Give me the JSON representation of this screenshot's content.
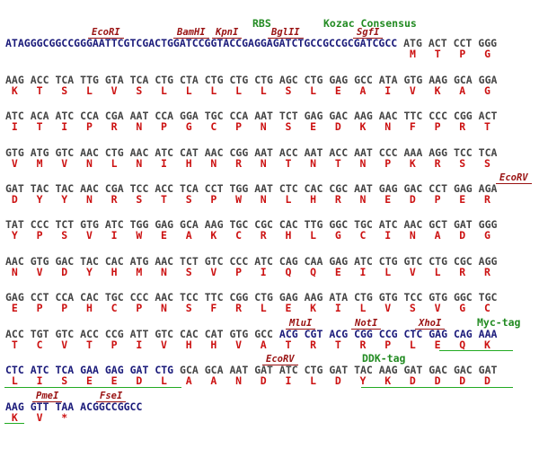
{
  "rows": [
    {
      "labels": [
        "RBS",
        "Kozac Consensus",
        "EcoRI",
        "BamHI",
        "KpnI",
        "BglII",
        "SgfI"
      ],
      "segments": [
        {
          "kind": "vector",
          "text": "ATAGGGCGGCCGGGAATTCGTCGACTGGATCCGGTACCGAGGAGATCTGCCGCCGCGATCGCC"
        },
        {
          "kind": "orf",
          "codons": [
            "ATG",
            "ACT",
            "CCT",
            "GGG"
          ]
        }
      ],
      "protein": [
        "M",
        "T",
        "P",
        "G"
      ]
    },
    {
      "labels": [],
      "segments": [
        {
          "kind": "orf",
          "codons": [
            "AAG",
            "ACC",
            "TCA",
            "TTG",
            "GTA",
            "TCA",
            "CTG",
            "CTA",
            "CTG",
            "CTG",
            "CTG",
            "AGC",
            "CTG",
            "GAG",
            "GCC",
            "ATA",
            "GTG",
            "AAG",
            "GCA",
            "GGA"
          ]
        }
      ],
      "protein": [
        "K",
        "T",
        "S",
        "L",
        "V",
        "S",
        "L",
        "L",
        "L",
        "L",
        "L",
        "S",
        "L",
        "E",
        "A",
        "I",
        "V",
        "K",
        "A",
        "G"
      ]
    },
    {
      "labels": [],
      "segments": [
        {
          "kind": "orf",
          "codons": [
            "ATC",
            "ACA",
            "ATC",
            "CCA",
            "CGA",
            "AAT",
            "CCA",
            "GGA",
            "TGC",
            "CCA",
            "AAT",
            "TCT",
            "GAG",
            "GAC",
            "AAG",
            "AAC",
            "TTC",
            "CCC",
            "CGG",
            "ACT"
          ]
        }
      ],
      "protein": [
        "I",
        "T",
        "I",
        "P",
        "R",
        "N",
        "P",
        "G",
        "C",
        "P",
        "N",
        "S",
        "E",
        "D",
        "K",
        "N",
        "F",
        "P",
        "R",
        "T"
      ]
    },
    {
      "labels": [],
      "segments": [
        {
          "kind": "orf",
          "codons": [
            "GTG",
            "ATG",
            "GTC",
            "AAC",
            "CTG",
            "AAC",
            "ATC",
            "CAT",
            "AAC",
            "CGG",
            "AAT",
            "ACC",
            "AAT",
            "ACC",
            "AAT",
            "CCC",
            "AAA",
            "AGG",
            "TCC",
            "TCA"
          ]
        }
      ],
      "protein": [
        "V",
        "M",
        "V",
        "N",
        "L",
        "N",
        "I",
        "H",
        "N",
        "R",
        "N",
        "T",
        "N",
        "T",
        "N",
        "P",
        "K",
        "R",
        "S",
        "S"
      ]
    },
    {
      "labels": [
        "EcoRV"
      ],
      "segments": [
        {
          "kind": "orf",
          "codons": [
            "GAT",
            "TAC",
            "TAC",
            "AAC",
            "CGA",
            "TCC",
            "ACC",
            "TCA",
            "CCT",
            "TGG",
            "AAT",
            "CTC",
            "CAC",
            "CGC",
            "AAT",
            "GAG",
            "GAC",
            "CCT",
            "GAG",
            "AGA"
          ]
        }
      ],
      "protein": [
        "D",
        "Y",
        "Y",
        "N",
        "R",
        "S",
        "T",
        "S",
        "P",
        "W",
        "N",
        "L",
        "H",
        "R",
        "N",
        "E",
        "D",
        "P",
        "E",
        "R"
      ]
    },
    {
      "labels": [],
      "segments": [
        {
          "kind": "orf",
          "codons": [
            "TAT",
            "CCC",
            "TCT",
            "GTG",
            "ATC",
            "TGG",
            "GAG",
            "GCA",
            "AAG",
            "TGC",
            "CGC",
            "CAC",
            "TTG",
            "GGC",
            "TGC",
            "ATC",
            "AAC",
            "GCT",
            "GAT",
            "GGG"
          ]
        }
      ],
      "protein": [
        "Y",
        "P",
        "S",
        "V",
        "I",
        "W",
        "E",
        "A",
        "K",
        "C",
        "R",
        "H",
        "L",
        "G",
        "C",
        "I",
        "N",
        "A",
        "D",
        "G"
      ]
    },
    {
      "labels": [],
      "segments": [
        {
          "kind": "orf",
          "codons": [
            "AAC",
            "GTG",
            "GAC",
            "TAC",
            "CAC",
            "ATG",
            "AAC",
            "TCT",
            "GTC",
            "CCC",
            "ATC",
            "CAG",
            "CAA",
            "GAG",
            "ATC",
            "CTG",
            "GTC",
            "CTG",
            "CGC",
            "AGG"
          ]
        }
      ],
      "protein": [
        "N",
        "V",
        "D",
        "Y",
        "H",
        "M",
        "N",
        "S",
        "V",
        "P",
        "I",
        "Q",
        "Q",
        "E",
        "I",
        "L",
        "V",
        "L",
        "R",
        "R"
      ]
    },
    {
      "labels": [],
      "segments": [
        {
          "kind": "orf",
          "codons": [
            "GAG",
            "CCT",
            "CCA",
            "CAC",
            "TGC",
            "CCC",
            "AAC",
            "TCC",
            "TTC",
            "CGG",
            "CTG",
            "GAG",
            "AAG",
            "ATA",
            "CTG",
            "GTG",
            "TCC",
            "GTG",
            "GGC",
            "TGC"
          ]
        }
      ],
      "protein": [
        "E",
        "P",
        "P",
        "H",
        "C",
        "P",
        "N",
        "S",
        "F",
        "R",
        "L",
        "E",
        "K",
        "I",
        "L",
        "V",
        "S",
        "V",
        "G",
        "C"
      ]
    },
    {
      "labels": [
        "MluI",
        "NotI",
        "XhoI",
        "Myc-tag"
      ],
      "segments": [
        {
          "kind": "orf",
          "codons": [
            "ACC",
            "TGT",
            "GTC",
            "ACC",
            "CCG",
            "ATT",
            "GTC",
            "CAC",
            "CAT",
            "GTG",
            "GCC"
          ]
        },
        {
          "kind": "tag",
          "codons": [
            "ACG",
            "CGT",
            "ACG",
            "CGG",
            "CCG",
            "CTC",
            "GAG",
            "CAG",
            "AAA"
          ]
        }
      ],
      "protein": [
        "T",
        "C",
        "V",
        "T",
        "P",
        "I",
        "V",
        "H",
        "H",
        "V",
        "A",
        "T",
        "R",
        "T",
        "R",
        "P",
        "L",
        "E",
        "Q",
        "K"
      ]
    },
    {
      "labels": [
        "EcoRV",
        "DDK-tag"
      ],
      "segments": [
        {
          "kind": "tag",
          "codons": [
            "CTC",
            "ATC",
            "TCA",
            "GAA",
            "GAG",
            "GAT",
            "CTG"
          ]
        },
        {
          "kind": "orf",
          "codons": [
            "GCA",
            "GCA",
            "AAT",
            "GAT",
            "ATC",
            "CTG",
            "GAT",
            "TAC",
            "AAG",
            "GAT",
            "GAC",
            "GAC",
            "GAT"
          ]
        }
      ],
      "protein": [
        "L",
        "I",
        "S",
        "E",
        "E",
        "D",
        "L",
        "A",
        "A",
        "N",
        "D",
        "I",
        "L",
        "D",
        "Y",
        "K",
        "D",
        "D",
        "D",
        "D"
      ]
    },
    {
      "labels": [
        "PmeI",
        "FseI"
      ],
      "segments": [
        {
          "kind": "tag",
          "codons": [
            "AAG",
            "GTT",
            "TAA"
          ]
        },
        {
          "kind": "vector",
          "text": "ACGGCCGGCC"
        }
      ],
      "protein": [
        "K",
        "V",
        "*"
      ]
    }
  ]
}
